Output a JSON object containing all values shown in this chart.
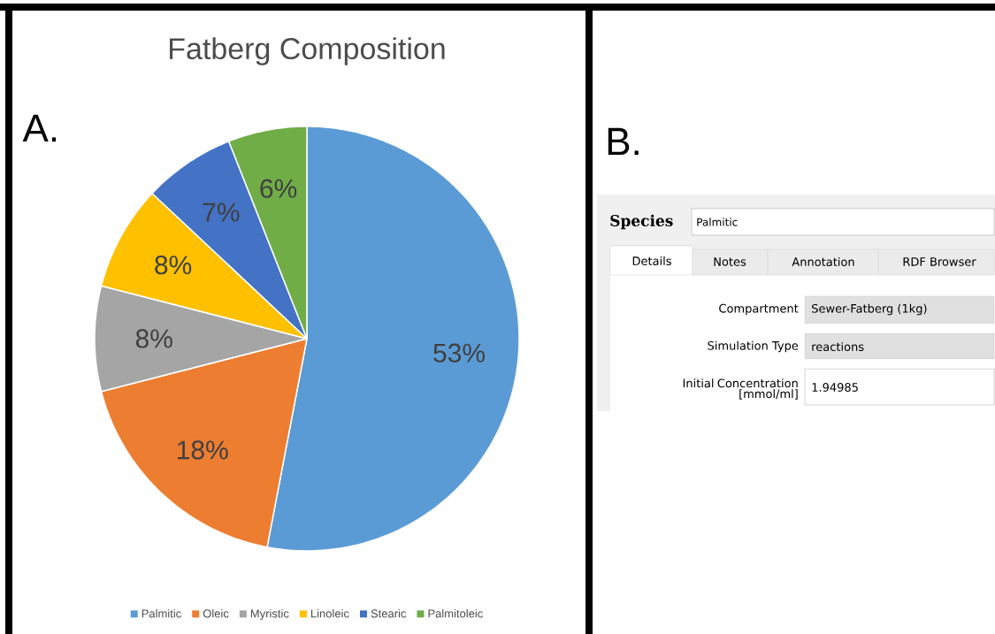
{
  "chart_data": [
    {
      "type": "pie",
      "title": "Fatberg Composition",
      "categories": [
        "Palmitic",
        "Oleic",
        "Myristic",
        "Linoleic",
        "Stearic",
        "Palmitoleic"
      ],
      "values": [
        53,
        18,
        8,
        8,
        7,
        6
      ],
      "value_labels": [
        "53%",
        "18%",
        "8%",
        "8%",
        "7%",
        "6%"
      ],
      "colors": [
        "#5b9bd5",
        "#ed7d31",
        "#a5a5a5",
        "#ffc000",
        "#4472c4",
        "#70ad47"
      ],
      "legend": "bottom",
      "annotations": [
        "A."
      ]
    },
    {
      "type": "other",
      "annotations": [
        "B.",
        "Species",
        "Palmitic",
        "Details",
        "Notes",
        "Annotation",
        "RDF Browser",
        "Compartment",
        "Sewer-Fatberg (1kg)",
        "Simulation Type",
        "reactions",
        "Initial Concentration [mmol/ml]",
        "1.94985"
      ]
    }
  ]
}
